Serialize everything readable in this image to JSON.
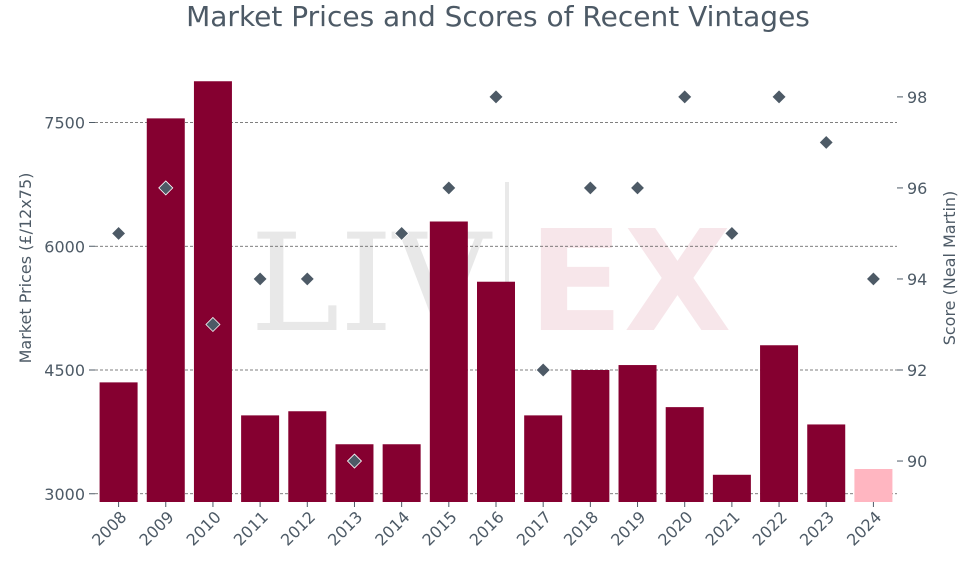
{
  "chart_data": {
    "type": "bar",
    "title": "Market Prices and Scores of Recent Vintages",
    "categories": [
      "2008",
      "2009",
      "2010",
      "2011",
      "2012",
      "2013",
      "2014",
      "2015",
      "2016",
      "2017",
      "2018",
      "2019",
      "2020",
      "2021",
      "2022",
      "2023",
      "2024"
    ],
    "series": [
      {
        "name": "Market Prices",
        "type": "bar",
        "axis": "left",
        "color": "#850030",
        "values": [
          4350,
          7550,
          8000,
          3950,
          4000,
          3600,
          3600,
          6300,
          5570,
          3950,
          4500,
          4560,
          4050,
          3230,
          4800,
          3840,
          3300
        ],
        "colors": [
          "#850030",
          "#850030",
          "#850030",
          "#850030",
          "#850030",
          "#850030",
          "#850030",
          "#850030",
          "#850030",
          "#850030",
          "#850030",
          "#850030",
          "#850030",
          "#850030",
          "#850030",
          "#850030",
          "#ffb6c1"
        ]
      },
      {
        "name": "Score",
        "type": "scatter",
        "axis": "right",
        "color": "#4d5a66",
        "values": [
          95,
          96,
          93,
          94,
          94,
          90,
          95,
          96,
          98,
          92,
          96,
          96,
          98,
          95,
          98,
          97,
          94
        ]
      }
    ],
    "ylabel": "Market Prices (£/12x75)",
    "y2label": "Score (Neal Martin)",
    "yticks": [
      3000,
      4500,
      6000,
      7500
    ],
    "y2ticks": [
      90,
      92,
      94,
      96,
      98
    ],
    "ylim": [
      2900,
      8500
    ],
    "y2lim": [
      89.1,
      99.25
    ],
    "grid": true,
    "watermark": "LIV-EX"
  }
}
